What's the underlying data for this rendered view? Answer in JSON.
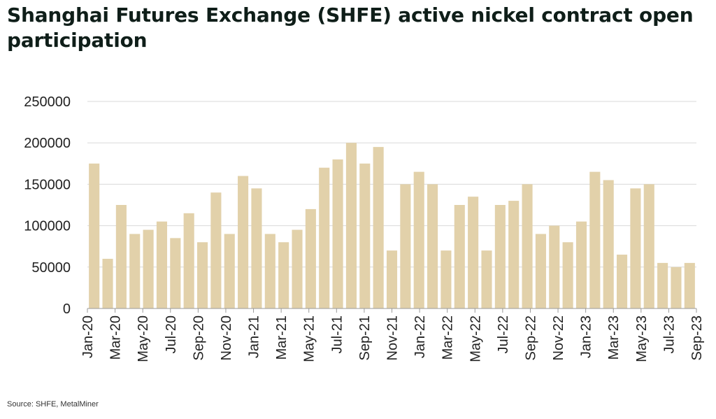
{
  "title": "Shanghai Futures Exchange (SHFE) active nickel contract open participation",
  "source": "Source: SHFE, MetalMiner",
  "colors": {
    "bar": "#e2d1aa",
    "grid": "#d9d9d9",
    "axis": "#9a9a9a",
    "text": "#222222"
  },
  "chart_data": {
    "type": "bar",
    "title": "Shanghai Futures Exchange (SHFE) active nickel contract open participation",
    "xlabel": "",
    "ylabel": "",
    "ylim": [
      0,
      250000
    ],
    "yticks": [
      0,
      50000,
      100000,
      150000,
      200000,
      250000
    ],
    "grid": true,
    "legend": "none",
    "xtick_labels": [
      "Jan-20",
      "Mar-20",
      "May-20",
      "Jul-20",
      "Sep-20",
      "Nov-20",
      "Jan-21",
      "Mar-21",
      "May-21",
      "Jul-21",
      "Sep-21",
      "Nov-21",
      "Jan-22",
      "Mar-22",
      "May-22",
      "Jul-22",
      "Sep-22",
      "Nov-22",
      "Jan-23",
      "Mar-23",
      "May-23",
      "Jul-23",
      "Sep-23"
    ],
    "categories": [
      "Jan-20",
      "Feb-20",
      "Mar-20",
      "Apr-20",
      "May-20",
      "Jun-20",
      "Jul-20",
      "Aug-20",
      "Sep-20",
      "Oct-20",
      "Nov-20",
      "Dec-20",
      "Jan-21",
      "Feb-21",
      "Mar-21",
      "Apr-21",
      "May-21",
      "Jun-21",
      "Jul-21",
      "Aug-21",
      "Sep-21",
      "Oct-21",
      "Nov-21",
      "Dec-21",
      "Jan-22",
      "Feb-22",
      "Mar-22",
      "Apr-22",
      "May-22",
      "Jun-22",
      "Jul-22",
      "Aug-22",
      "Sep-22",
      "Oct-22",
      "Nov-22",
      "Dec-22",
      "Jan-23",
      "Feb-23",
      "Mar-23",
      "Apr-23",
      "May-23",
      "Jun-23",
      "Jul-23",
      "Aug-23",
      "Sep-23"
    ],
    "series": [
      {
        "values": [
          175000,
          60000,
          125000,
          90000,
          95000,
          105000,
          85000,
          115000,
          80000,
          140000,
          90000,
          160000,
          145000,
          90000,
          80000,
          95000,
          120000,
          170000,
          180000,
          200000,
          175000,
          195000,
          70000,
          150000,
          165000,
          150000,
          70000,
          125000,
          135000,
          70000,
          125000,
          130000,
          150000,
          90000,
          100000,
          80000,
          105000,
          165000,
          155000,
          65000,
          145000,
          150000,
          55000,
          50000,
          55000
        ]
      }
    ]
  }
}
